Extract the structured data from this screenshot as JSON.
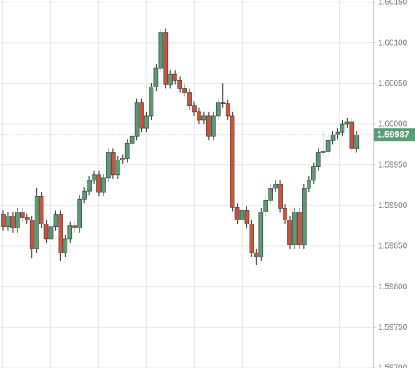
{
  "chart_data": {
    "type": "candlestick",
    "open": [
      1.59889,
      1.59874,
      1.59887,
      1.59872,
      1.59892,
      1.59885,
      1.59882,
      1.59847,
      1.59911,
      1.59877,
      1.59859,
      1.59874,
      1.59889,
      1.59842,
      1.59859,
      1.59875,
      1.59872,
      1.59908,
      1.59918,
      1.59931,
      1.59938,
      1.59916,
      1.59934,
      1.59965,
      1.59938,
      1.59956,
      1.59958,
      1.59977,
      1.59985,
      1.60027,
      1.59995,
      1.6001,
      1.60046,
      1.60069,
      1.60113,
      1.60049,
      1.60062,
      1.60054,
      1.60044,
      1.60039,
      1.60023,
      1.60015,
      1.60005,
      1.6001,
      1.59985,
      1.6001,
      1.60027,
      1.60025,
      1.6001,
      1.59898,
      1.59882,
      1.59894,
      1.59877,
      1.59842,
      1.59837,
      1.59892,
      1.59906,
      1.59921,
      1.59926,
      1.59896,
      1.59882,
      1.59852,
      1.59892,
      1.59852,
      1.59921,
      1.59931,
      1.59948,
      1.59965,
      1.59967,
      1.5998,
      1.59987,
      1.5999,
      1.6,
      1.60003,
      1.5997
    ],
    "high": [
      1.59894,
      1.59892,
      1.59892,
      1.59897,
      1.59897,
      1.5989,
      1.59887,
      1.59921,
      1.59916,
      1.59882,
      1.59879,
      1.59894,
      1.59894,
      1.59864,
      1.5988,
      1.5988,
      1.59913,
      1.59923,
      1.59936,
      1.59943,
      1.59943,
      1.59939,
      1.5997,
      1.5997,
      1.59961,
      1.59963,
      1.59982,
      1.5999,
      1.60032,
      1.60032,
      1.60015,
      1.60051,
      1.60074,
      1.60118,
      1.60118,
      1.60067,
      1.60067,
      1.60059,
      1.60049,
      1.60044,
      1.60028,
      1.6002,
      1.60015,
      1.60015,
      1.60015,
      1.60032,
      1.6005,
      1.6003,
      1.60015,
      1.59903,
      1.59899,
      1.59899,
      1.59882,
      1.59847,
      1.59897,
      1.59911,
      1.59926,
      1.59931,
      1.59931,
      1.59901,
      1.59887,
      1.59897,
      1.59897,
      1.59926,
      1.59936,
      1.59953,
      1.5997,
      1.59992,
      1.59985,
      1.59992,
      1.59995,
      1.60005,
      1.60008,
      1.60008,
      1.59992
    ],
    "low": [
      1.59869,
      1.59869,
      1.59867,
      1.59867,
      1.5988,
      1.59877,
      1.59835,
      1.59842,
      1.59872,
      1.59854,
      1.59854,
      1.59869,
      1.59832,
      1.59837,
      1.59854,
      1.59867,
      1.59867,
      1.59903,
      1.59913,
      1.59926,
      1.59911,
      1.59911,
      1.59929,
      1.59933,
      1.59933,
      1.59951,
      1.59953,
      1.59972,
      1.5998,
      1.5999,
      1.5999,
      1.60005,
      1.60041,
      1.60064,
      1.60044,
      1.60044,
      1.60049,
      1.60039,
      1.60034,
      1.60018,
      1.6001,
      1.6,
      1.6,
      1.5998,
      1.5998,
      1.60005,
      1.6002,
      1.60005,
      1.59893,
      1.59877,
      1.59877,
      1.59872,
      1.59837,
      1.59827,
      1.59832,
      1.59887,
      1.59901,
      1.59916,
      1.59891,
      1.59877,
      1.59847,
      1.59847,
      1.59847,
      1.59847,
      1.59916,
      1.59926,
      1.59943,
      1.5996,
      1.59962,
      1.59975,
      1.59982,
      1.59985,
      1.59995,
      1.59965,
      1.59965
    ],
    "close": [
      1.59874,
      1.59887,
      1.59872,
      1.59892,
      1.59885,
      1.59882,
      1.59847,
      1.59911,
      1.59877,
      1.59859,
      1.59874,
      1.59889,
      1.59842,
      1.59859,
      1.59875,
      1.59872,
      1.59908,
      1.59918,
      1.59931,
      1.59938,
      1.59916,
      1.59934,
      1.59965,
      1.59938,
      1.59956,
      1.59958,
      1.59977,
      1.59985,
      1.60027,
      1.59995,
      1.6001,
      1.60046,
      1.60069,
      1.60113,
      1.60049,
      1.60062,
      1.60054,
      1.60044,
      1.60039,
      1.60023,
      1.60015,
      1.60005,
      1.6001,
      1.59985,
      1.6001,
      1.60027,
      1.60025,
      1.6001,
      1.59898,
      1.59882,
      1.59894,
      1.59877,
      1.59842,
      1.59837,
      1.59892,
      1.59906,
      1.59921,
      1.59926,
      1.59896,
      1.59882,
      1.59852,
      1.59892,
      1.59852,
      1.59921,
      1.59931,
      1.59948,
      1.59965,
      1.59967,
      1.5998,
      1.59987,
      1.5999,
      1.6,
      1.60003,
      1.5997,
      1.59987
    ],
    "up_color": "#5b9b76",
    "down_color": "#c8553d",
    "last_price": 1.59987,
    "last_price_color": "#5b9b76",
    "ylim": [
      1.597,
      1.60153
    ],
    "yticks": [
      {
        "value": 1.6015,
        "label": "1.60150"
      },
      {
        "value": 1.601,
        "label": "1.60100"
      },
      {
        "value": 1.6005,
        "label": "1.60050"
      },
      {
        "value": 1.6,
        "label": "1.60000"
      },
      {
        "value": 1.5995,
        "label": "1.59950"
      },
      {
        "value": 1.599,
        "label": "1.59900"
      },
      {
        "value": 1.5985,
        "label": "1.59850"
      },
      {
        "value": 1.598,
        "label": "1.59800"
      },
      {
        "value": 1.5975,
        "label": "1.59750"
      },
      {
        "value": 1.597,
        "label": "1.59700"
      }
    ],
    "grid": true
  }
}
